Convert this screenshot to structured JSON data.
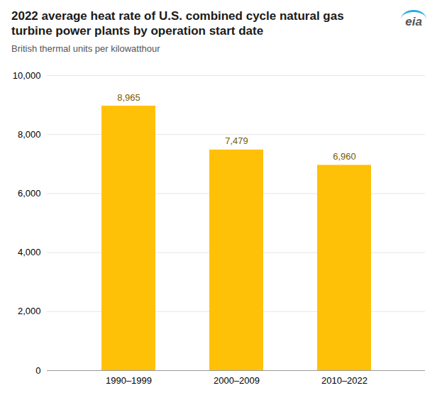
{
  "chart_data": {
    "type": "bar",
    "title": "2022 average heat rate of U.S. combined cycle natural gas turbine power plants by operation start date",
    "subtitle": "British thermal units per kilowatthour",
    "annotations": [
      "eia"
    ],
    "categories": [
      "1990–1999",
      "2000–2009",
      "2010–2022"
    ],
    "values": [
      8965,
      7479,
      6960
    ],
    "value_labels": [
      "8,965",
      "7,479",
      "6,960"
    ],
    "data_labels": true,
    "color": "#FFC107",
    "ylim": [
      0,
      10000
    ],
    "yticks": [
      0,
      {
        "value": 2000,
        "label": "2,000"
      },
      {
        "value": 4000,
        "label": "4,000"
      },
      {
        "value": 6000,
        "label": "6,000"
      },
      {
        "value": 8000,
        "label": "8,000"
      },
      {
        "value": 10000,
        "label": "10,000"
      }
    ],
    "grid": true
  }
}
